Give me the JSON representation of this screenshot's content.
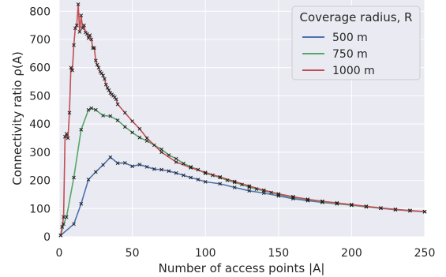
{
  "chart_data": {
    "type": "line",
    "xlabel": "Number of access points |A|",
    "ylabel": "Connectivity ratio ρ(A)",
    "xlim": [
      0,
      250
    ],
    "ylim": [
      0,
      840
    ],
    "xticks": [
      0,
      50,
      100,
      150,
      200,
      250
    ],
    "yticks": [
      0,
      100,
      200,
      300,
      400,
      500,
      600,
      700,
      800
    ],
    "grid": true,
    "legend": {
      "title": "Coverage radius, R",
      "position": "top-right"
    },
    "series": [
      {
        "name": "500 m",
        "color": "#4c72b0",
        "x": [
          1,
          10,
          15,
          20,
          25,
          30,
          35,
          40,
          45,
          50,
          55,
          60,
          65,
          70,
          75,
          80,
          85,
          90,
          95,
          100,
          110,
          120,
          130,
          140,
          150,
          160,
          170,
          180,
          190,
          200,
          210,
          220,
          230,
          240,
          250
        ],
        "y": [
          5,
          45,
          117,
          203,
          230,
          255,
          282,
          261,
          262,
          250,
          256,
          248,
          240,
          238,
          233,
          226,
          218,
          210,
          203,
          195,
          188,
          175,
          163,
          155,
          145,
          135,
          128,
          122,
          117,
          112,
          106,
          101,
          96,
          92,
          89
        ]
      },
      {
        "name": "750 m",
        "color": "#55a868",
        "x": [
          1,
          3,
          5,
          10,
          15,
          20,
          22,
          25,
          30,
          35,
          40,
          45,
          50,
          55,
          60,
          65,
          70,
          75,
          80,
          85,
          90,
          95,
          100,
          105,
          110,
          115,
          120,
          125,
          130,
          135,
          140,
          145,
          150,
          160,
          170,
          180,
          190,
          200,
          210,
          220,
          230,
          240,
          250
        ],
        "y": [
          5,
          45,
          70,
          210,
          380,
          450,
          456,
          450,
          430,
          428,
          413,
          390,
          370,
          352,
          340,
          325,
          310,
          290,
          277,
          260,
          248,
          238,
          225,
          218,
          210,
          200,
          193,
          185,
          176,
          169,
          163,
          157,
          150,
          140,
          132,
          124,
          118,
          112,
          107,
          102,
          97,
          93,
          89
        ]
      },
      {
        "name": "1000 m",
        "color": "#c44e52",
        "x": [
          1,
          2,
          3,
          4,
          5,
          6,
          7,
          8,
          9,
          10,
          11,
          12,
          13,
          14,
          15,
          16,
          17,
          18,
          19,
          20,
          21,
          22,
          23,
          24,
          25,
          26,
          27,
          28,
          29,
          30,
          31,
          32,
          33,
          34,
          35,
          36,
          37,
          38,
          39,
          40,
          45,
          50,
          55,
          60,
          70,
          80,
          90,
          100,
          110,
          120,
          130,
          140,
          150,
          160,
          170,
          180,
          190,
          200,
          210,
          220,
          230,
          240,
          250
        ],
        "y": [
          5,
          35,
          70,
          355,
          365,
          350,
          440,
          600,
          590,
          680,
          740,
          750,
          825,
          727,
          785,
          740,
          750,
          725,
          720,
          705,
          715,
          700,
          670,
          670,
          625,
          610,
          600,
          585,
          580,
          572,
          560,
          540,
          528,
          520,
          510,
          505,
          500,
          495,
          488,
          470,
          440,
          410,
          383,
          350,
          300,
          265,
          245,
          228,
          212,
          196,
          180,
          165,
          152,
          142,
          133,
          126,
          120,
          114,
          108,
          102,
          97,
          93,
          89
        ]
      }
    ]
  }
}
